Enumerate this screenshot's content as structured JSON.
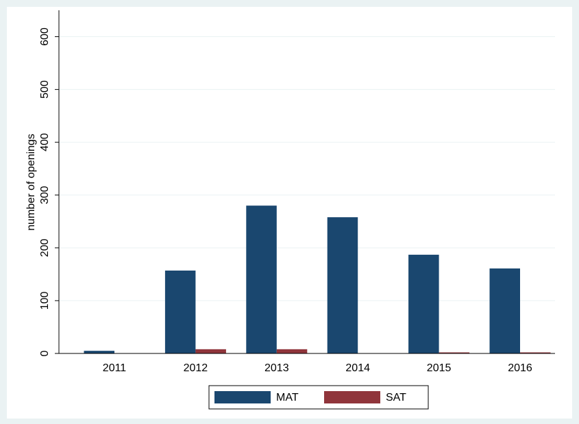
{
  "chart_data": {
    "type": "bar",
    "y_label": "number of openings",
    "categories": [
      "2011",
      "2012",
      "2013",
      "2014",
      "2015",
      "2016"
    ],
    "series": [
      {
        "name": "MAT",
        "color": "#1a476f",
        "values": [
          5,
          157,
          280,
          258,
          187,
          161
        ]
      },
      {
        "name": "SAT",
        "color": "#90353b",
        "values": [
          0,
          8,
          8,
          0,
          2,
          2
        ]
      }
    ],
    "ylim": [
      0,
      650
    ],
    "yticks": [
      0,
      100,
      200,
      300,
      400,
      500,
      600
    ],
    "grid": true,
    "legend": "bottom"
  }
}
